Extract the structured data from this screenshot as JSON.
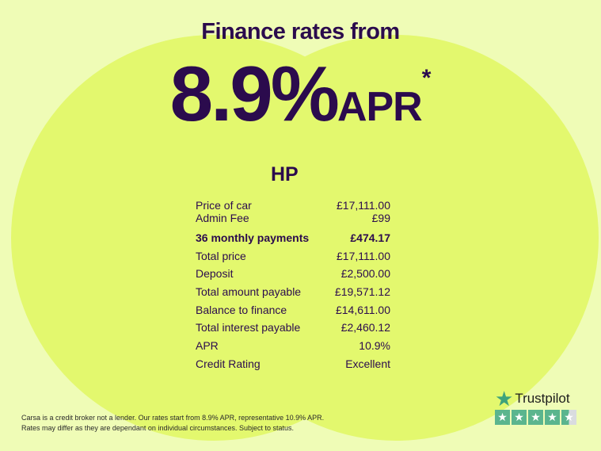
{
  "header": {
    "title": "Finance rates from",
    "rate": "8.9%",
    "rate_suffix": "APR",
    "asterisk": "*"
  },
  "section_title": "HP",
  "rows": [
    {
      "label": "Price of car",
      "value": "£17,111.00"
    },
    {
      "label": "Admin Fee",
      "value": "£99"
    },
    {
      "label": "36 monthly payments",
      "value": "£474.17"
    },
    {
      "label": "Total price",
      "value": "£17,111.00"
    },
    {
      "label": "Deposit",
      "value": "£2,500.00"
    },
    {
      "label": "Total amount payable",
      "value": "£19,571.12"
    },
    {
      "label": "Balance to finance",
      "value": "£14,611.00"
    },
    {
      "label": "Total interest payable",
      "value": "£2,460.12"
    },
    {
      "label": "APR",
      "value": "10.9%"
    },
    {
      "label": "Credit Rating",
      "value": "Excellent"
    }
  ],
  "footer": {
    "line1": "Carsa is a credit broker not a lender. Our rates start from 8.9% APR, representative 10.9% APR.",
    "line2": "Rates may differ as they are dependant on individual circumstances. Subject to status."
  },
  "trustpilot": {
    "name": "Trustpilot",
    "rating_stars": 4.5,
    "max_stars": 5,
    "color": "#3fa37b"
  },
  "colors": {
    "text": "#2b0b4d",
    "background": "#effcb6",
    "blob": "#e3f86e"
  }
}
